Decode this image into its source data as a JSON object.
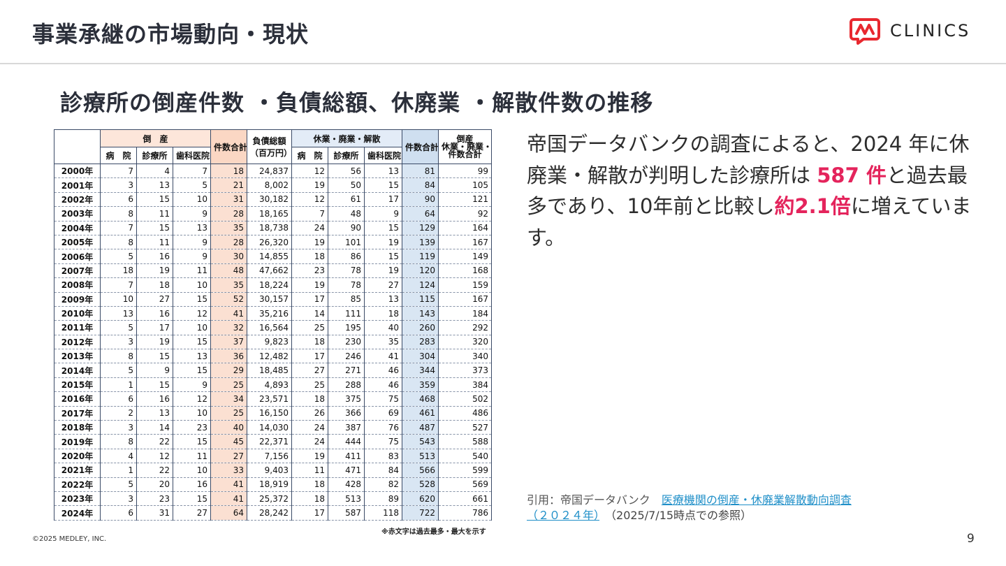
{
  "header": {
    "title": "事業承継の市場動向・現状",
    "logo_text": "CLINICS",
    "logo_color": "#e8282f"
  },
  "section_title": "診療所の倒産件数 ・負債総額、休廃業 ・解散件数の推移",
  "table": {
    "group_bankruptcy": "倒　産",
    "group_closure": "休業・廃業・解散",
    "col_hospital": "病　院",
    "col_clinic": "診療所",
    "col_dental": "歯科医院",
    "col_total": "件数合計",
    "col_debt_line1": "負債総額",
    "col_debt_line2": "（百万円）",
    "col_combined_line1": "倒産",
    "col_combined_line2": "休業・廃業・解散",
    "col_combined_line3": "件数合計",
    "red_color": "#e8262d",
    "rows": [
      {
        "year": "2000年",
        "bh": "7",
        "bc": "4",
        "bd": "7",
        "bt": "18",
        "debt": "24,837",
        "ch": "12",
        "cc": "56",
        "cd": "13",
        "ct": "81",
        "all": "99"
      },
      {
        "year": "2001年",
        "bh": "3",
        "bc": "13",
        "bd": "5",
        "bt": "21",
        "debt": "8,002",
        "ch": "19",
        "cc": "50",
        "cd": "15",
        "ct": "84",
        "all": "105"
      },
      {
        "year": "2002年",
        "bh": "6",
        "bc": "15",
        "bd": "10",
        "bt": "31",
        "debt": "30,182",
        "ch": "12",
        "cc": "61",
        "cd": "17",
        "ct": "90",
        "all": "121"
      },
      {
        "year": "2003年",
        "bh": "8",
        "bc": "11",
        "bd": "9",
        "bt": "28",
        "debt": "18,165",
        "ch": "7",
        "cc": "48",
        "cd": "9",
        "ct": "64",
        "all": "92"
      },
      {
        "year": "2004年",
        "bh": "7",
        "bc": "15",
        "bd": "13",
        "bt": "35",
        "debt": "18,738",
        "ch": "24",
        "cc": "90",
        "cd": "15",
        "ct": "129",
        "all": "164"
      },
      {
        "year": "2005年",
        "bh": "8",
        "bc": "11",
        "bd": "9",
        "bt": "28",
        "debt": "26,320",
        "ch": "19",
        "cc": "101",
        "cd": "19",
        "ct": "139",
        "all": "167"
      },
      {
        "year": "2006年",
        "bh": "5",
        "bc": "16",
        "bd": "9",
        "bt": "30",
        "debt": "14,855",
        "ch": "18",
        "cc": "86",
        "cd": "15",
        "ct": "119",
        "all": "149"
      },
      {
        "year": "2007年",
        "bh": "18",
        "bc": "19",
        "bd": "11",
        "bt": "48",
        "debt": "47,662",
        "ch": "23",
        "cc": "78",
        "cd": "19",
        "ct": "120",
        "all": "168",
        "red": [
          "bh",
          "debt"
        ]
      },
      {
        "year": "2008年",
        "bh": "7",
        "bc": "18",
        "bd": "10",
        "bt": "35",
        "debt": "18,224",
        "ch": "19",
        "cc": "78",
        "cd": "27",
        "ct": "124",
        "all": "159"
      },
      {
        "year": "2009年",
        "bh": "10",
        "bc": "27",
        "bd": "15",
        "bt": "52",
        "debt": "30,157",
        "ch": "17",
        "cc": "85",
        "cd": "13",
        "ct": "115",
        "all": "167"
      },
      {
        "year": "2010年",
        "bh": "13",
        "bc": "16",
        "bd": "12",
        "bt": "41",
        "debt": "35,216",
        "ch": "14",
        "cc": "111",
        "cd": "18",
        "ct": "143",
        "all": "184"
      },
      {
        "year": "2011年",
        "bh": "5",
        "bc": "17",
        "bd": "10",
        "bt": "32",
        "debt": "16,564",
        "ch": "25",
        "cc": "195",
        "cd": "40",
        "ct": "260",
        "all": "292"
      },
      {
        "year": "2012年",
        "bh": "3",
        "bc": "19",
        "bd": "15",
        "bt": "37",
        "debt": "9,823",
        "ch": "18",
        "cc": "230",
        "cd": "35",
        "ct": "283",
        "all": "320"
      },
      {
        "year": "2013年",
        "bh": "8",
        "bc": "15",
        "bd": "13",
        "bt": "36",
        "debt": "12,482",
        "ch": "17",
        "cc": "246",
        "cd": "41",
        "ct": "304",
        "all": "340"
      },
      {
        "year": "2014年",
        "bh": "5",
        "bc": "9",
        "bd": "15",
        "bt": "29",
        "debt": "18,485",
        "ch": "27",
        "cc": "271",
        "cd": "46",
        "ct": "344",
        "all": "373",
        "red": [
          "ch"
        ]
      },
      {
        "year": "2015年",
        "bh": "1",
        "bc": "15",
        "bd": "9",
        "bt": "25",
        "debt": "4,893",
        "ch": "25",
        "cc": "288",
        "cd": "46",
        "ct": "359",
        "all": "384"
      },
      {
        "year": "2016年",
        "bh": "6",
        "bc": "16",
        "bd": "12",
        "bt": "34",
        "debt": "23,571",
        "ch": "18",
        "cc": "375",
        "cd": "75",
        "ct": "468",
        "all": "502"
      },
      {
        "year": "2017年",
        "bh": "2",
        "bc": "13",
        "bd": "10",
        "bt": "25",
        "debt": "16,150",
        "ch": "26",
        "cc": "366",
        "cd": "69",
        "ct": "461",
        "all": "486"
      },
      {
        "year": "2018年",
        "bh": "3",
        "bc": "14",
        "bd": "23",
        "bt": "40",
        "debt": "14,030",
        "ch": "24",
        "cc": "387",
        "cd": "76",
        "ct": "487",
        "all": "527"
      },
      {
        "year": "2019年",
        "bh": "8",
        "bc": "22",
        "bd": "15",
        "bt": "45",
        "debt": "22,371",
        "ch": "24",
        "cc": "444",
        "cd": "75",
        "ct": "543",
        "all": "588"
      },
      {
        "year": "2020年",
        "bh": "4",
        "bc": "12",
        "bd": "11",
        "bt": "27",
        "debt": "7,156",
        "ch": "19",
        "cc": "411",
        "cd": "83",
        "ct": "513",
        "all": "540"
      },
      {
        "year": "2021年",
        "bh": "1",
        "bc": "22",
        "bd": "10",
        "bt": "33",
        "debt": "9,403",
        "ch": "11",
        "cc": "471",
        "cd": "84",
        "ct": "566",
        "all": "599"
      },
      {
        "year": "2022年",
        "bh": "5",
        "bc": "20",
        "bd": "16",
        "bt": "41",
        "debt": "18,919",
        "ch": "18",
        "cc": "428",
        "cd": "82",
        "ct": "528",
        "all": "569"
      },
      {
        "year": "2023年",
        "bh": "3",
        "bc": "23",
        "bd": "15",
        "bt": "41",
        "debt": "25,372",
        "ch": "18",
        "cc": "513",
        "cd": "89",
        "ct": "620",
        "all": "661"
      },
      {
        "year": "2024年",
        "bh": "6",
        "bc": "31",
        "bd": "27",
        "bt": "64",
        "debt": "28,242",
        "ch": "17",
        "cc": "587",
        "cd": "118",
        "ct": "722",
        "all": "786",
        "red": [
          "bc",
          "bd",
          "bt",
          "cc",
          "cd",
          "ct",
          "all"
        ]
      }
    ],
    "note": "※赤文字は過去最多・最大を示す"
  },
  "body": {
    "part1": "帝国データバンクの調査によると、2024 年に休廃業・解散が判明した診療所は ",
    "highlight1": "587 件",
    "part2": "と過去最多であり、10年前と比較し",
    "highlight2": "約2.1倍",
    "part3": "に増えています。",
    "highlight_color": "#e4245c"
  },
  "citation": {
    "prefix": "引用：帝国データバンク　",
    "link_line1": "医療機関の倒産・休廃業解散動向調査",
    "link_line2": "（２０２４年）",
    "date_note": "　（2025/7/15時点での参照）"
  },
  "footer": {
    "copyright": "©2025 MEDLEY, INC.",
    "page_number": "9"
  }
}
